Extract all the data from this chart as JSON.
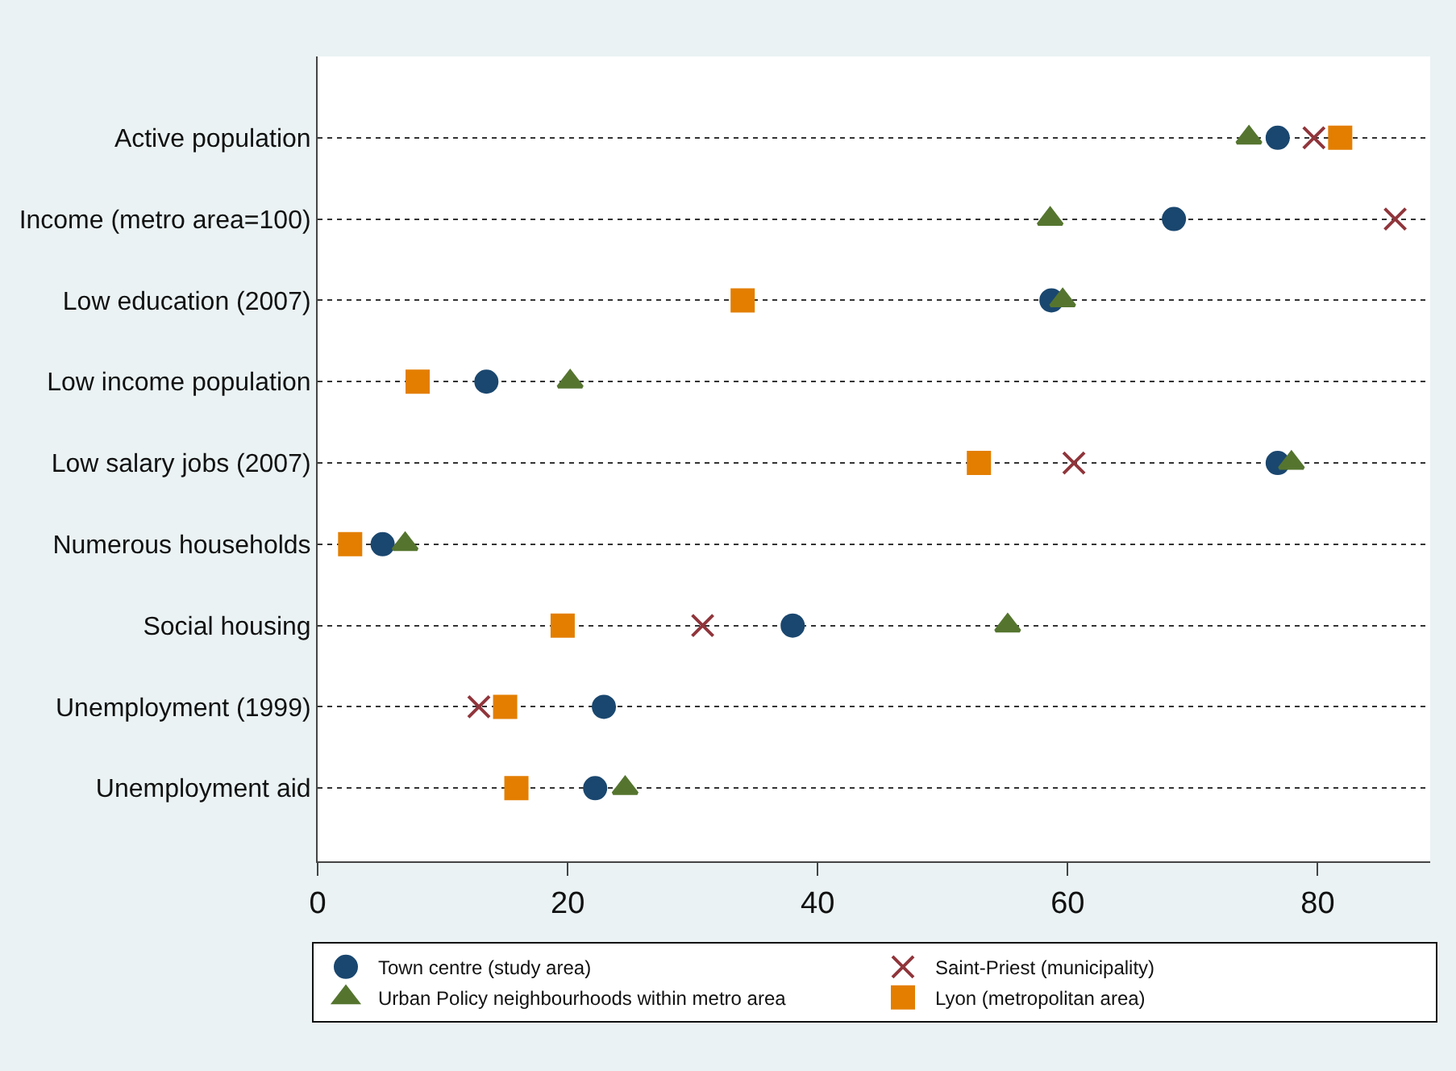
{
  "chart_data": {
    "type": "scatter",
    "categories": [
      "Active population",
      "Income (metro area=100)",
      "Low education (2007)",
      "Low income population",
      "Low salary jobs (2007)",
      "Numerous households",
      "Social housing",
      "Unemployment (1999)",
      "Unemployment aid"
    ],
    "series": [
      {
        "name": "Town centre (study area)",
        "color": "#1a476f",
        "marker": "circle",
        "values": [
          76.8,
          68.5,
          58.7,
          13.5,
          76.8,
          5.2,
          38.0,
          22.9,
          22.2
        ]
      },
      {
        "name": "Saint-Priest (municipality)",
        "color": "#90353b",
        "marker": "cross",
        "values": [
          79.7,
          86.2,
          null,
          null,
          60.5,
          null,
          30.8,
          12.9,
          null
        ]
      },
      {
        "name": "Urban Policy neighbourhoods within metro area",
        "color": "#55752f",
        "marker": "triangle",
        "values": [
          74.5,
          58.6,
          59.6,
          20.2,
          77.9,
          7.0,
          55.2,
          null,
          24.6
        ]
      },
      {
        "name": "Lyon (metropolitan area)",
        "color": "#e37e00",
        "marker": "square",
        "values": [
          81.8,
          null,
          34.0,
          8.0,
          52.9,
          2.6,
          19.6,
          15.0,
          15.9
        ]
      }
    ],
    "orientation": "horizontal",
    "xlim": [
      0,
      89
    ],
    "xticks": [
      0,
      20,
      40,
      60,
      80
    ],
    "grid": "y",
    "legend": "bottom"
  }
}
